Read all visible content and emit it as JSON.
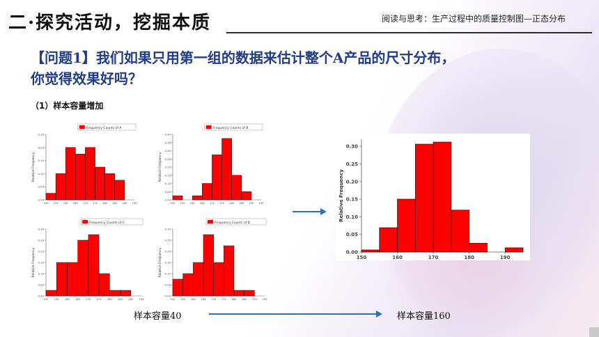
{
  "header": {
    "title": "二·探究活动，挖掘本质",
    "tag": "阅读与思考：生产过程中的质量控制图—正态分布"
  },
  "question": {
    "line1": "【问题1】我们如果只用第一组的数据来估计整个A产品的尺寸分布，",
    "line2": "你觉得效果好吗？"
  },
  "subheading": "（1）样本容量增加",
  "captions": {
    "left": "样本容量40",
    "right": "样本容量160"
  },
  "colors": {
    "bar": "#ff0000",
    "bar_edge": "#222222",
    "arrow": "#2e6fb7",
    "title_blue": "#1f3b8a"
  },
  "chart_data": [
    {
      "type": "bar",
      "legend": "Frequency Counts of A",
      "ylabel": "Relative Frequency",
      "xlim": [
        150,
        195
      ],
      "ylim": [
        0,
        0.25
      ],
      "bin_width": 5,
      "bins_start": [
        150,
        155,
        160,
        165,
        170,
        175,
        180,
        185
      ],
      "values": [
        0.025,
        0.1,
        0.2,
        0.175,
        0.2,
        0.125,
        0.1,
        0.075
      ]
    },
    {
      "type": "bar",
      "legend": "Frequency Counts of B",
      "ylabel": "Relative Frequency",
      "xlim": [
        150,
        195
      ],
      "ylim": [
        0,
        0.4
      ],
      "bin_width": 5,
      "bins_start": [
        150,
        160,
        165,
        170,
        175,
        180,
        185
      ],
      "values": [
        0.025,
        0.025,
        0.1,
        0.275,
        0.375,
        0.15,
        0.05
      ]
    },
    {
      "type": "bar",
      "legend": "Frequency Counts of C",
      "ylabel": "Relative Frequency",
      "xlim": [
        150,
        195
      ],
      "ylim": [
        0,
        0.3
      ],
      "bin_width": 5,
      "bins_start": [
        150,
        155,
        160,
        165,
        170,
        175,
        180,
        185
      ],
      "values": [
        0.025,
        0.15,
        0.15,
        0.25,
        0.275,
        0.1,
        0.025,
        0.025
      ]
    },
    {
      "type": "bar",
      "legend": "Frequency Counts of D",
      "ylabel": "Relative Frequency",
      "xlim": [
        150,
        195
      ],
      "ylim": [
        0,
        0.3
      ],
      "bin_width": 5,
      "bins_start": [
        150,
        155,
        160,
        165,
        170,
        175,
        180,
        185
      ],
      "values": [
        0.075,
        0.1,
        0.15,
        0.275,
        0.15,
        0.225,
        0.025,
        0.025
      ]
    },
    {
      "type": "bar",
      "ylabel": "Relative Frequency",
      "xlim": [
        150,
        195
      ],
      "ylim": [
        0,
        0.32
      ],
      "yticks": [
        "0.00",
        "0.05",
        "0.10",
        "0.15",
        "0.20",
        "0.25",
        "0.30"
      ],
      "xticks": [
        "150",
        "160",
        "170",
        "180",
        "190"
      ],
      "bin_width": 5,
      "bins_start": [
        150,
        155,
        160,
        165,
        170,
        175,
        180,
        185,
        190
      ],
      "values": [
        0.006,
        0.069,
        0.15,
        0.306,
        0.312,
        0.119,
        0.025,
        0.0,
        0.012
      ]
    }
  ]
}
